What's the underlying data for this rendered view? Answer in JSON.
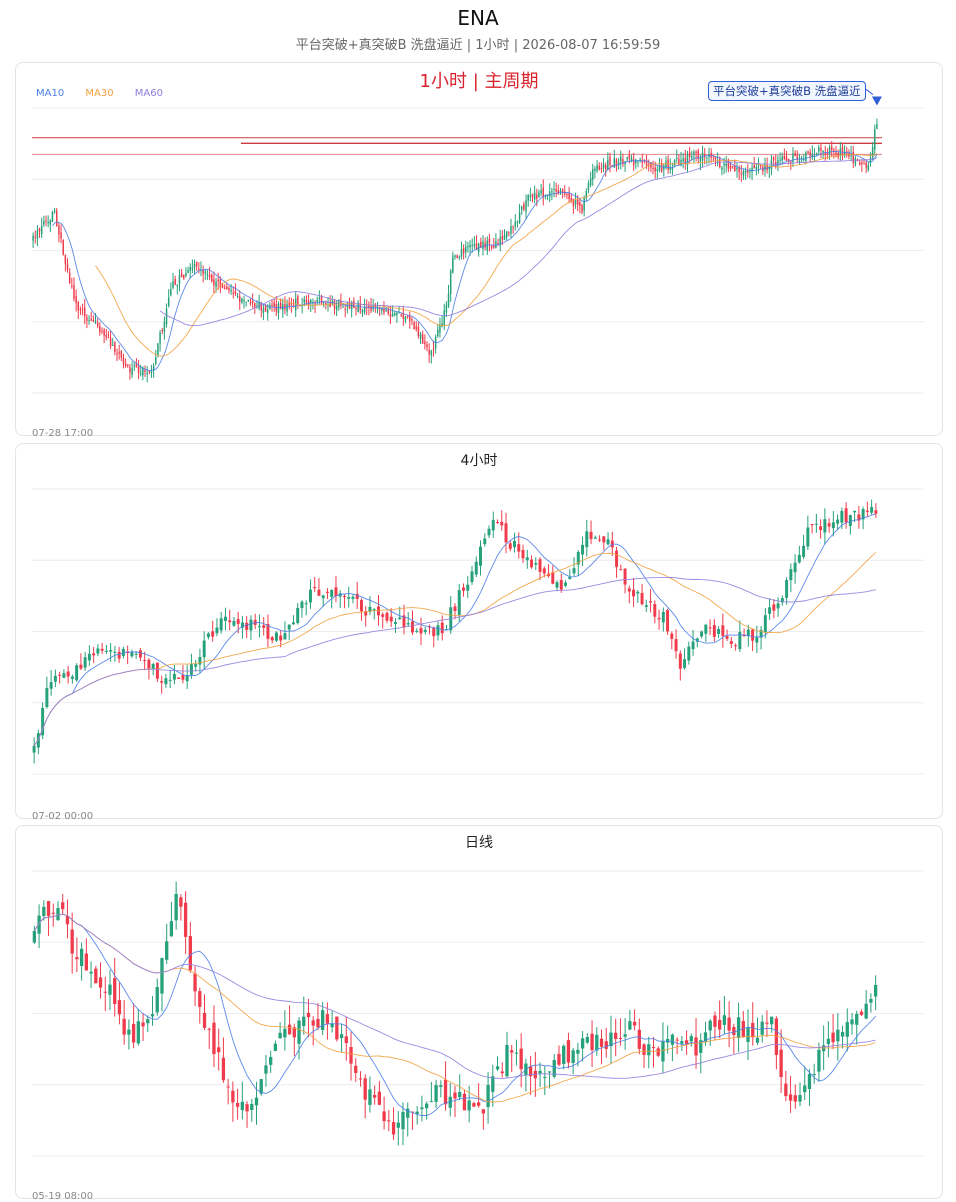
{
  "header": {
    "title": "ENA",
    "subtitle": "平台突破+真突破B  洗盘逼近 | 1小时 | 2026-08-07 16:59:59"
  },
  "colors": {
    "up": "#26a17b",
    "down": "#ef3b4b",
    "ma10": "#4a7ee8",
    "ma30": "#f2a03d",
    "ma60": "#8f7de0",
    "level": "#c9252c",
    "signal": "#2f5fd6"
  },
  "panels": [
    {
      "title": "1小时 | 主周期",
      "start_label": "07-28 17:00",
      "legend": [
        "MA10",
        "MA30",
        "MA60"
      ],
      "signal_label": "平台突破+真突破B 洗盘逼近",
      "signal_icon": "down-triangle-icon"
    },
    {
      "title": "4小时",
      "start_label": "07-02 00:00"
    },
    {
      "title": "日线",
      "start_label": "05-19 08:00"
    }
  ],
  "chart_data": [
    {
      "type": "candlestick",
      "timeframe": "1h",
      "grid": true,
      "legend_position": "top-left",
      "anchors": [
        [
          0,
          0.7
        ],
        [
          10,
          0.79
        ],
        [
          20,
          0.45
        ],
        [
          30,
          0.38
        ],
        [
          45,
          0.22
        ],
        [
          55,
          0.22
        ],
        [
          65,
          0.53
        ],
        [
          75,
          0.59
        ],
        [
          90,
          0.5
        ],
        [
          110,
          0.44
        ],
        [
          125,
          0.47
        ],
        [
          140,
          0.46
        ],
        [
          160,
          0.44
        ],
        [
          175,
          0.41
        ],
        [
          185,
          0.28
        ],
        [
          192,
          0.45
        ],
        [
          195,
          0.63
        ],
        [
          205,
          0.67
        ],
        [
          215,
          0.68
        ],
        [
          225,
          0.76
        ],
        [
          230,
          0.85
        ],
        [
          245,
          0.86
        ],
        [
          255,
          0.8
        ],
        [
          260,
          0.95
        ],
        [
          275,
          0.98
        ],
        [
          290,
          0.95
        ],
        [
          310,
          1.0
        ],
        [
          330,
          0.93
        ],
        [
          350,
          0.98
        ],
        [
          370,
          1.02
        ],
        [
          388,
          0.96
        ],
        [
          392,
          1.12
        ]
      ],
      "level_lines": [
        1.06,
        1.04,
        1.0
      ]
    },
    {
      "type": "candlestick",
      "timeframe": "4h",
      "grid": true,
      "anchors": [
        [
          0,
          0.05
        ],
        [
          3,
          0.28
        ],
        [
          10,
          0.32
        ],
        [
          15,
          0.4
        ],
        [
          22,
          0.37
        ],
        [
          30,
          0.3
        ],
        [
          35,
          0.3
        ],
        [
          40,
          0.4
        ],
        [
          45,
          0.5
        ],
        [
          52,
          0.46
        ],
        [
          58,
          0.42
        ],
        [
          65,
          0.57
        ],
        [
          72,
          0.59
        ],
        [
          80,
          0.5
        ],
        [
          90,
          0.46
        ],
        [
          96,
          0.45
        ],
        [
          104,
          0.68
        ],
        [
          108,
          0.82
        ],
        [
          112,
          0.74
        ],
        [
          118,
          0.67
        ],
        [
          125,
          0.6
        ],
        [
          130,
          0.77
        ],
        [
          135,
          0.74
        ],
        [
          140,
          0.58
        ],
        [
          148,
          0.5
        ],
        [
          152,
          0.34
        ],
        [
          158,
          0.45
        ],
        [
          164,
          0.42
        ],
        [
          170,
          0.44
        ],
        [
          176,
          0.58
        ],
        [
          182,
          0.78
        ],
        [
          190,
          0.83
        ],
        [
          198,
          0.85
        ]
      ]
    },
    {
      "type": "candlestick",
      "timeframe": "1d",
      "grid": true,
      "anchors": [
        [
          0,
          0.7
        ],
        [
          5,
          0.76
        ],
        [
          8,
          0.66
        ],
        [
          12,
          0.6
        ],
        [
          16,
          0.55
        ],
        [
          20,
          0.45
        ],
        [
          25,
          0.52
        ],
        [
          30,
          0.78
        ],
        [
          35,
          0.52
        ],
        [
          40,
          0.38
        ],
        [
          45,
          0.28
        ],
        [
          50,
          0.43
        ],
        [
          55,
          0.47
        ],
        [
          60,
          0.5
        ],
        [
          65,
          0.46
        ],
        [
          70,
          0.34
        ],
        [
          75,
          0.25
        ],
        [
          80,
          0.3
        ],
        [
          85,
          0.34
        ],
        [
          90,
          0.32
        ],
        [
          95,
          0.31
        ],
        [
          100,
          0.42
        ],
        [
          105,
          0.38
        ],
        [
          110,
          0.39
        ],
        [
          115,
          0.45
        ],
        [
          120,
          0.45
        ],
        [
          125,
          0.48
        ],
        [
          130,
          0.43
        ],
        [
          136,
          0.45
        ],
        [
          140,
          0.44
        ],
        [
          146,
          0.5
        ],
        [
          152,
          0.45
        ],
        [
          156,
          0.52
        ],
        [
          158,
          0.35
        ],
        [
          162,
          0.33
        ],
        [
          170,
          0.48
        ],
        [
          175,
          0.52
        ],
        [
          178,
          0.55
        ]
      ]
    }
  ]
}
